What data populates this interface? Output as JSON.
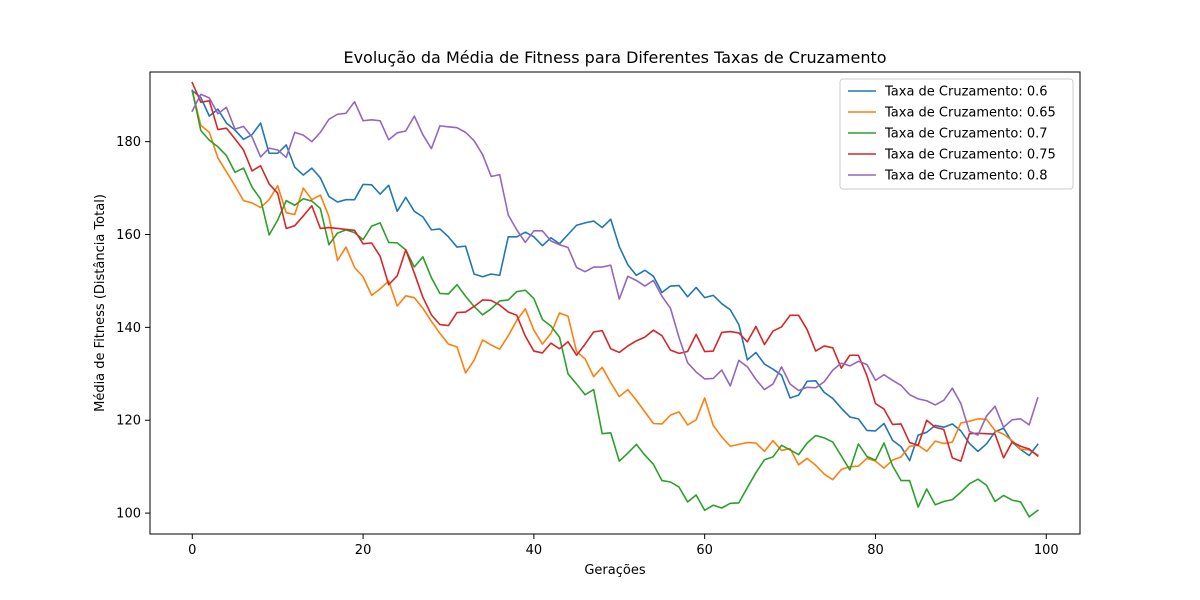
{
  "chart_data": {
    "type": "line",
    "title": "Evolução da Média de Fitness para Diferentes Taxas de Cruzamento",
    "xlabel": "Gerações",
    "ylabel": "Média de Fitness (Distância Total)",
    "xlim": [
      -4.95,
      103.95
    ],
    "ylim": [
      95.5,
      195.0
    ],
    "xticks": [
      0,
      20,
      40,
      60,
      80,
      100
    ],
    "yticks": [
      100,
      120,
      140,
      160,
      180
    ],
    "grid": false,
    "legend_position": "top-right",
    "series": [
      {
        "name": "Taxa de Cruzamento: 0.6",
        "color": "#1f77b4",
        "values": [
          191,
          189.5,
          185.5,
          187,
          184,
          182.5,
          180.5,
          181.5,
          184,
          177.5,
          177.5,
          179.3,
          174.5,
          172.8,
          174.3,
          172.2,
          168.2,
          167,
          167.5,
          167.5,
          170.8,
          170.7,
          168.7,
          170.6,
          165,
          168,
          165,
          163.8,
          161,
          161.2,
          159.5,
          157.3,
          157.5,
          151.5,
          150.9,
          151.5,
          151.2,
          159.5,
          159.5,
          160.5,
          159.5,
          157.6,
          159.3,
          158,
          160,
          162,
          162.5,
          162.9,
          161.5,
          163.3,
          157.4,
          153.5,
          151.2,
          152.3,
          151,
          147.5,
          148.9,
          149,
          146.6,
          148.6,
          146.4,
          146.9,
          145.1,
          143.8,
          140.6,
          133,
          134.6,
          132.1,
          131,
          129.7,
          124.8,
          125.4,
          128.4,
          128.5,
          126,
          124.7,
          122.6,
          120.7,
          120.3,
          117.8,
          117.7,
          119.3,
          115.7,
          114.3,
          111.3,
          116.8,
          117.4,
          118.9,
          118.5,
          119.2,
          117.7,
          115,
          113.3,
          114.9,
          117.5,
          118.3,
          115.3,
          113.7,
          112.4,
          114.8
        ]
      },
      {
        "name": "Taxa de Cruzamento: 0.65",
        "color": "#ff7f0e",
        "values": [
          191,
          183.5,
          182,
          176.5,
          173.5,
          170.5,
          167.3,
          166.8,
          165.8,
          167.5,
          170.5,
          164.7,
          164.3,
          170,
          167.5,
          168.5,
          163.9,
          154.4,
          157.3,
          152.9,
          150.9,
          146.9,
          148.3,
          150,
          144.6,
          146.8,
          146.4,
          144.1,
          141.3,
          138.7,
          136.4,
          135.8,
          130.2,
          132.9,
          137.3,
          136.2,
          135.3,
          138.2,
          141.5,
          144,
          139.4,
          136.4,
          138.7,
          143.1,
          142.4,
          134.8,
          133.2,
          129.4,
          131.4,
          128.1,
          125.1,
          126.6,
          124.3,
          121.8,
          119.3,
          119.2,
          121.1,
          121.8,
          119,
          120.1,
          124.8,
          118.9,
          116.4,
          114.4,
          114.8,
          115.2,
          115.1,
          113.3,
          115.6,
          113.5,
          113.9,
          110.4,
          111.8,
          110.3,
          108.4,
          107.2,
          109.4,
          110,
          110.1,
          111.8,
          111.2,
          109.7,
          111.4,
          112.1,
          114.4,
          114.6,
          113.3,
          115.5,
          115,
          115.3,
          119.4,
          119.8,
          120.3,
          120.2,
          117.8,
          117,
          115.6,
          113.8,
          113.6,
          112.5
        ]
      },
      {
        "name": "Taxa de Cruzamento: 0.7",
        "color": "#2ca02c",
        "values": [
          191,
          182.4,
          180.3,
          178.9,
          177,
          173.4,
          174.3,
          170.2,
          167.6,
          159.9,
          163.1,
          167.3,
          166.3,
          167.7,
          167.2,
          165.6,
          157.8,
          160.3,
          161,
          160.4,
          158.9,
          161.8,
          162.5,
          158.3,
          158.2,
          156.7,
          153,
          155.2,
          150.7,
          147.3,
          147.2,
          149.2,
          146.7,
          144.5,
          142.7,
          144,
          145.7,
          145.9,
          147.7,
          148,
          146.2,
          141.7,
          140.3,
          137.9,
          130,
          127.8,
          125.5,
          126.6,
          117.1,
          117.3,
          111.2,
          112.9,
          114.8,
          112.5,
          110.5,
          107,
          106.7,
          105.6,
          102.4,
          103.9,
          100.6,
          101.7,
          101.1,
          102.1,
          102.2,
          105.5,
          108.7,
          111.5,
          112.1,
          114.6,
          113.6,
          112.6,
          115.1,
          116.7,
          116.2,
          115.3,
          112.3,
          109.3,
          114.9,
          112.2,
          111.4,
          115.1,
          110.2,
          107,
          107,
          101.3,
          105.2,
          101.8,
          102.5,
          102.9,
          104.5,
          106.3,
          107.3,
          106,
          102.5,
          103.8,
          102.8,
          102.4,
          99.2,
          100.6
        ]
      },
      {
        "name": "Taxa de Cruzamento: 0.75",
        "color": "#d62728",
        "values": [
          192.7,
          188.5,
          188.8,
          182.6,
          182.9,
          180.6,
          178.2,
          173.7,
          174.8,
          170.9,
          168.9,
          161.3,
          161.9,
          164,
          166.2,
          161.3,
          161.5,
          161.3,
          161.1,
          160.9,
          158,
          158.2,
          155.3,
          149.2,
          151.1,
          156.7,
          151.7,
          146.5,
          142.7,
          140.6,
          140.4,
          143.2,
          143.3,
          144.5,
          145.9,
          145.8,
          144.8,
          143.3,
          142.6,
          138.1,
          134.9,
          134.5,
          136.6,
          135.4,
          136.9,
          134,
          136.4,
          139,
          139.3,
          135.4,
          134.6,
          136,
          137.1,
          137.9,
          139.4,
          138.2,
          135.1,
          134.4,
          134.8,
          138.5,
          134.8,
          134.9,
          138.9,
          139.1,
          138.8,
          136.9,
          140.2,
          136.3,
          139.2,
          140.1,
          142.6,
          142.6,
          139.5,
          134.9,
          136,
          135.6,
          131.2,
          134,
          134,
          129.6,
          123.6,
          122.4,
          119.1,
          119.2,
          115.2,
          114.6,
          120,
          118.5,
          118,
          111.9,
          111.2,
          117.1,
          117.2,
          117.1,
          117,
          111.9,
          115.3,
          114.4,
          113.8,
          112.3
        ]
      },
      {
        "name": "Taxa de Cruzamento: 0.8",
        "color": "#9467bd",
        "values": [
          186.6,
          190.2,
          189.4,
          186,
          187.4,
          182.7,
          183.3,
          181,
          176.7,
          178.6,
          178.2,
          176.6,
          182,
          181.4,
          180,
          182,
          184.8,
          185.9,
          186.1,
          188.6,
          184.5,
          184.7,
          184.5,
          180.4,
          181.9,
          182.3,
          185.5,
          181.5,
          178.5,
          183.4,
          183.2,
          183,
          182,
          180.2,
          177.2,
          172.5,
          172.9,
          164.2,
          161,
          158.3,
          160.8,
          160.8,
          158.6,
          157.8,
          157.2,
          152.9,
          152,
          153,
          153,
          153.4,
          146.1,
          151,
          150.1,
          148.9,
          150.1,
          146.7,
          144.1,
          137.8,
          132.4,
          130.4,
          128.9,
          129,
          130.8,
          127.4,
          132.9,
          131.5,
          128.8,
          126.6,
          127.8,
          131.5,
          127.8,
          126.4,
          127.1,
          127,
          128.3,
          130.8,
          132.3,
          131.7,
          132.7,
          132,
          128.6,
          129.8,
          128.6,
          127.5,
          125.5,
          124.6,
          124.2,
          123.3,
          124.3,
          126.9,
          123.6,
          117.6,
          116.8,
          120.9,
          123,
          118.5,
          120.1,
          120.3,
          119,
          124.8
        ]
      }
    ]
  }
}
